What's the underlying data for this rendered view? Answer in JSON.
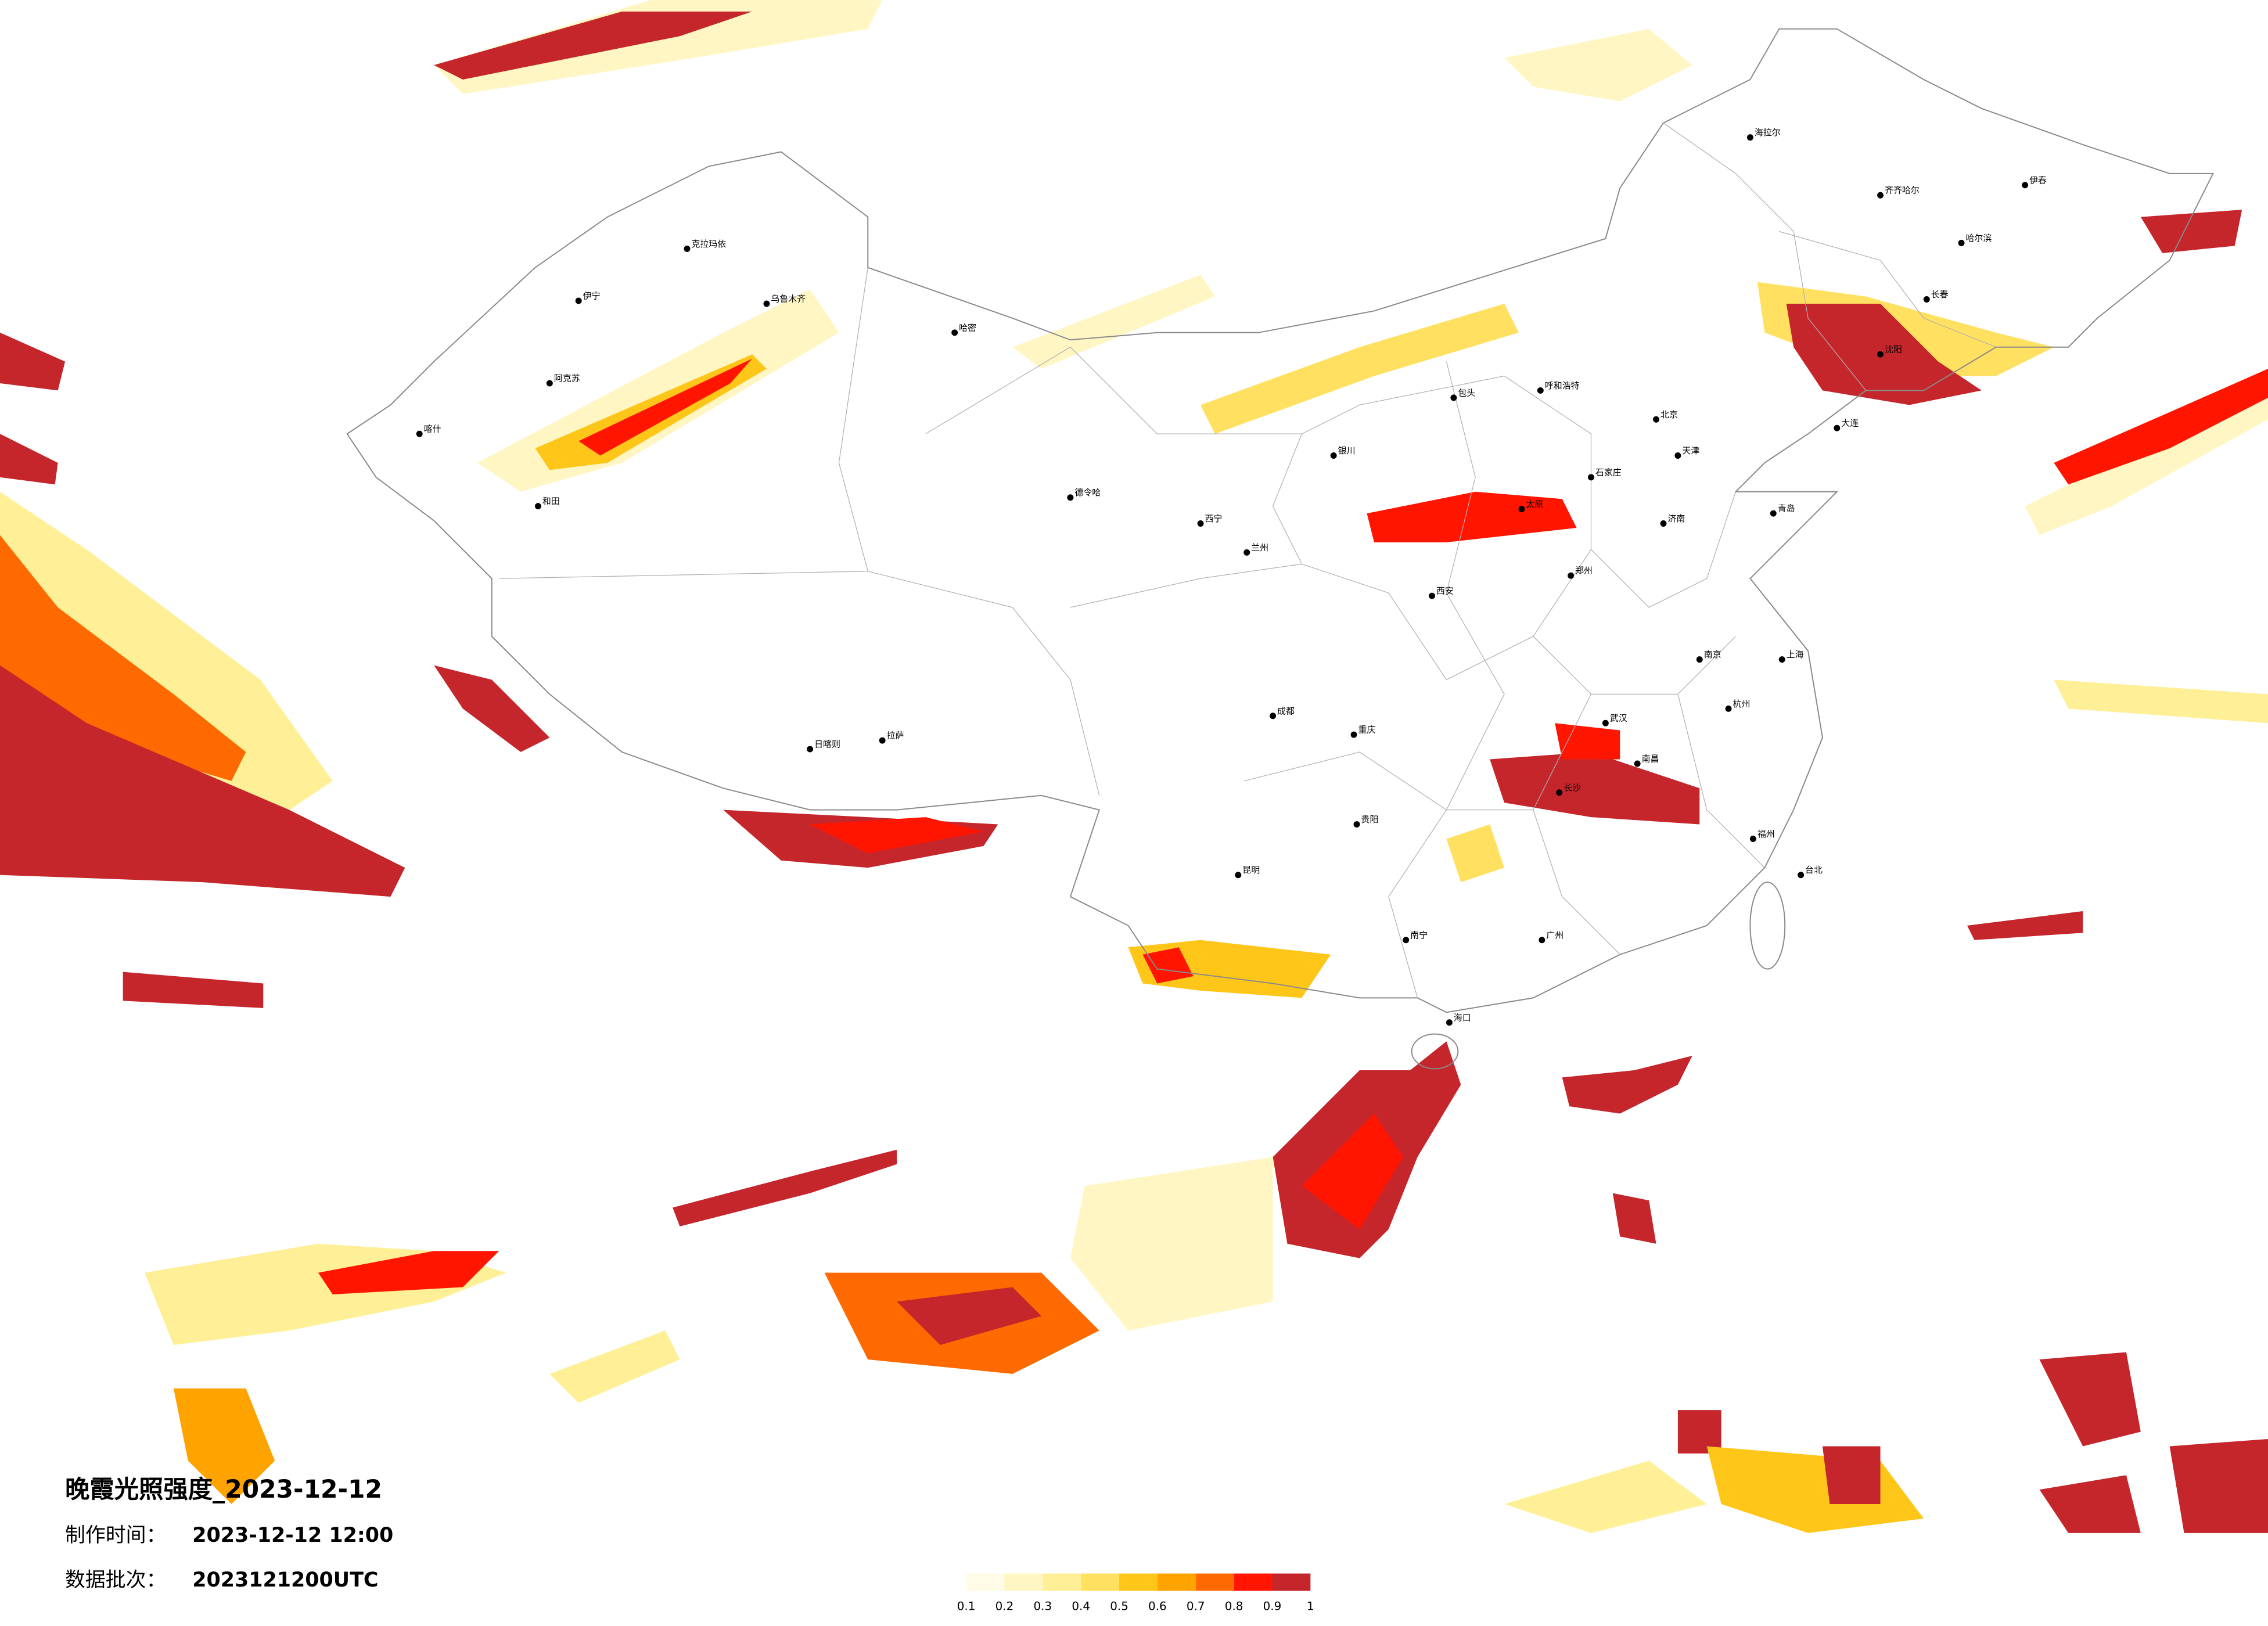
{
  "header": {
    "title": "晚霞光照强度_2023-12-12",
    "made_label": "制作时间：",
    "made_time": "2023-12-12 12:00",
    "batch_label": "数据批次：",
    "batch": "2023121200UTC"
  },
  "legend": {
    "ticks": [
      0.1,
      0.2,
      0.3,
      0.4,
      0.5,
      0.6,
      0.7,
      0.8,
      0.9,
      1
    ],
    "colors": [
      "#fffbe6",
      "#fff6c4",
      "#ffef96",
      "#ffe060",
      "#ffc61a",
      "#ffa300",
      "#ff6a00",
      "#ff1500",
      "#c4262c"
    ]
  },
  "cities": [
    "喀什",
    "阿克苏",
    "伊宁",
    "克拉玛依",
    "乌鲁木齐",
    "哈密",
    "和田",
    "拉萨",
    "日喀则",
    "德令哈",
    "西宁",
    "兰州",
    "银川",
    "呼和浩特",
    "北京",
    "天津",
    "石家庄",
    "太原",
    "济南",
    "郑州",
    "西安",
    "成都",
    "重庆",
    "贵阳",
    "昆明",
    "南宁",
    "广州",
    "长沙",
    "武汉",
    "南昌",
    "杭州",
    "上海",
    "南京",
    "福州",
    "台北",
    "海口",
    "沈阳",
    "长春",
    "哈尔滨",
    "齐齐哈尔",
    "大连",
    "青岛",
    "伊春",
    "海拉尔",
    "包头"
  ]
}
